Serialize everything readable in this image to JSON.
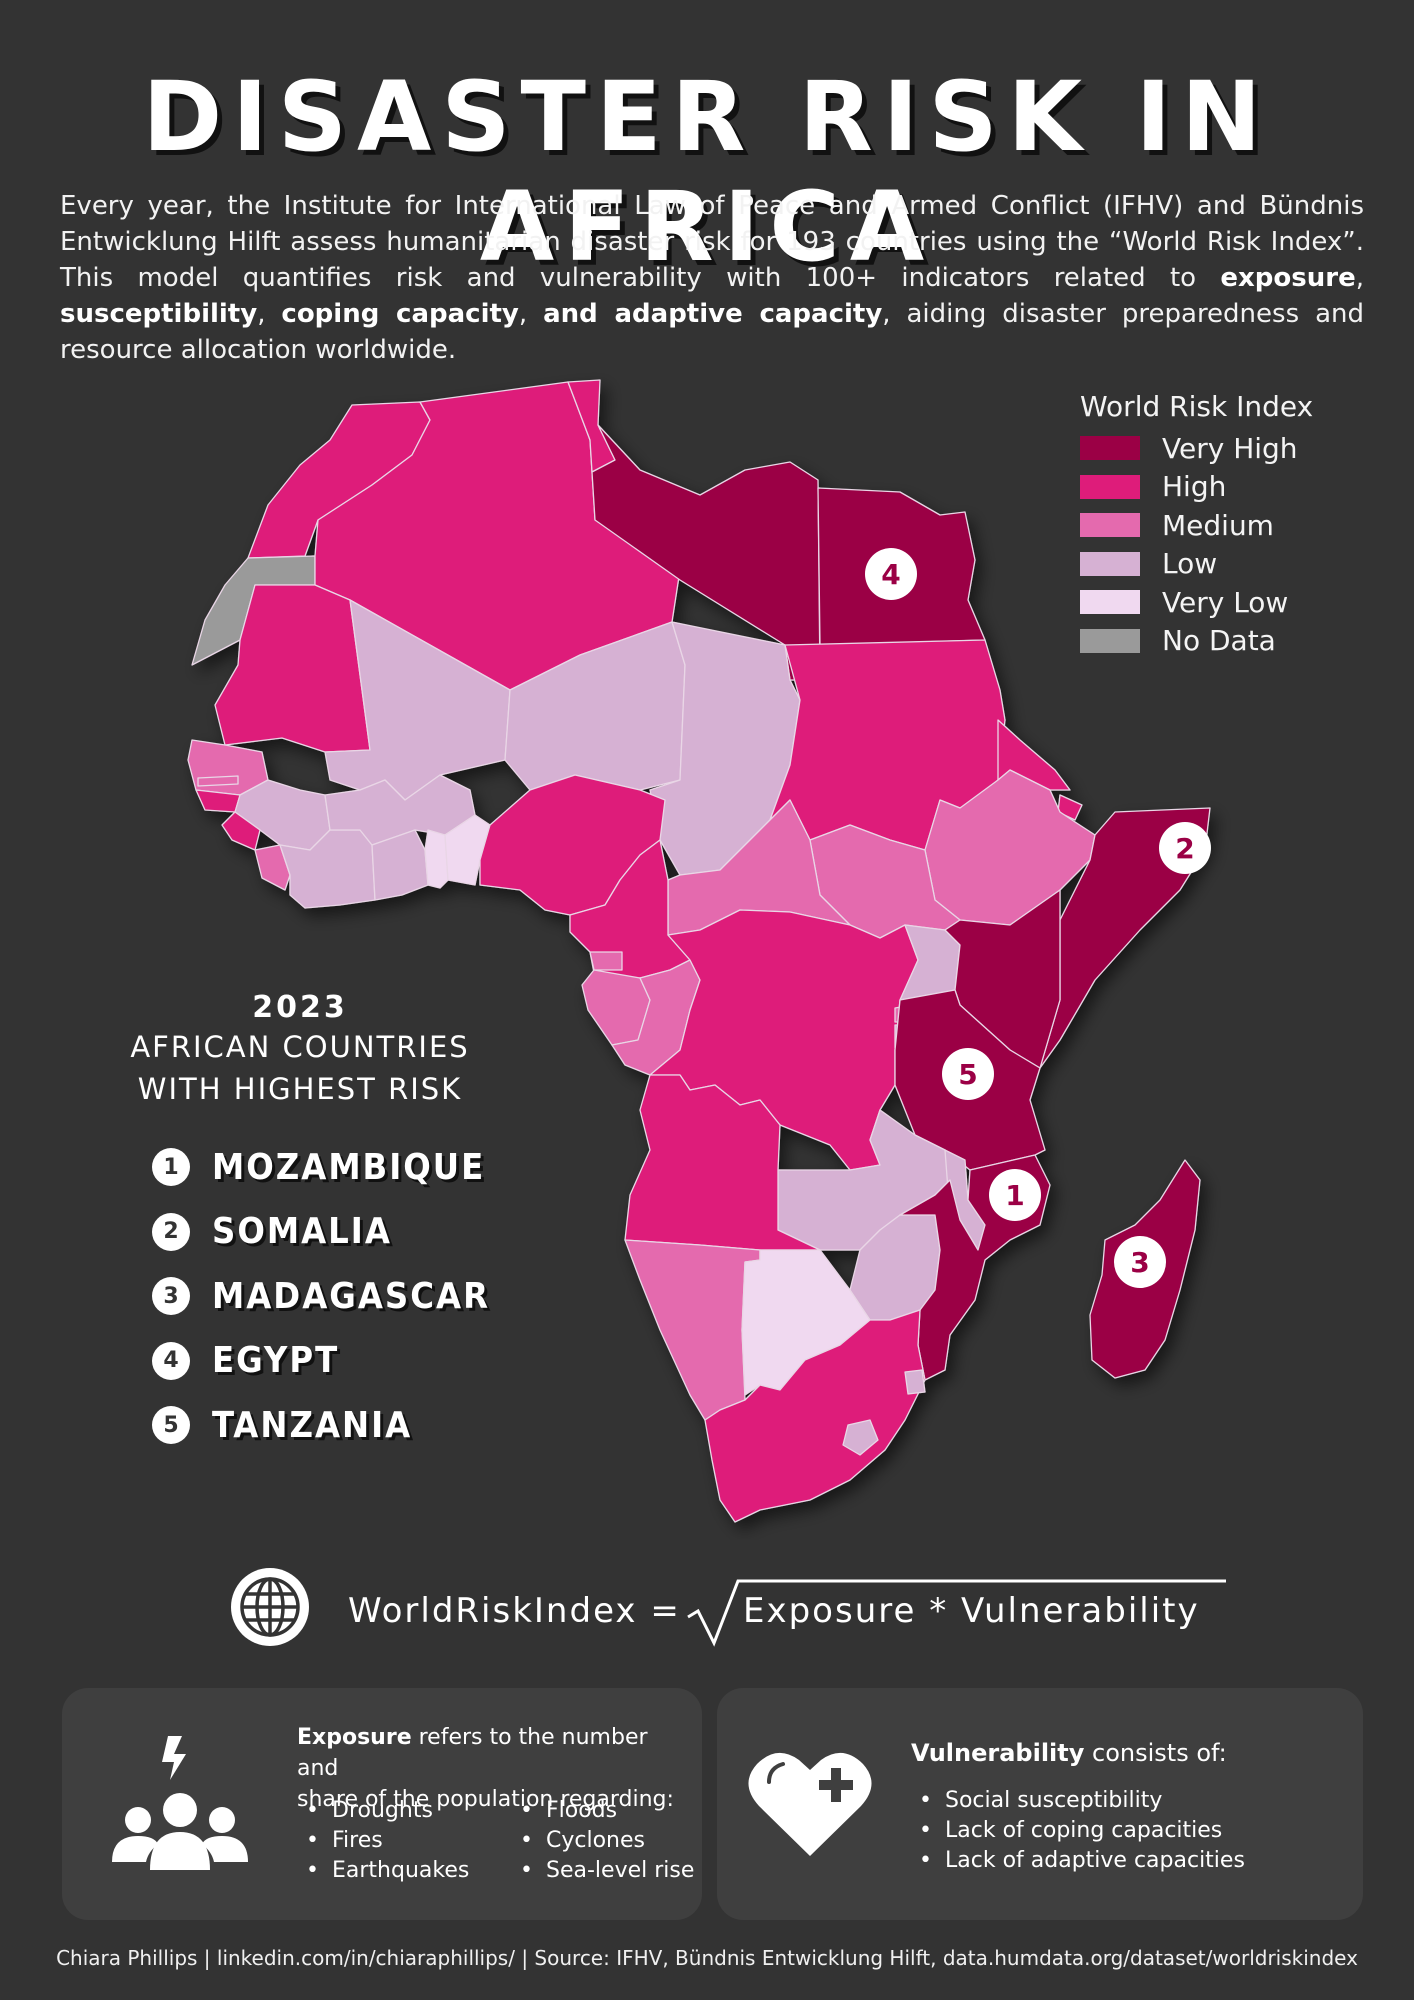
{
  "title": "DISASTER RISK IN AFRICA",
  "intro": {
    "part1": "Every year, the Institute for International Law of Peace and Armed Conflict (IFHV) and Bündnis Entwicklung Hilft assess humanitarian disaster risk for 193 countries using the “World Risk Index”. This model quantifies risk and vulnerability with 100+ indicators related to ",
    "b1": "exposure",
    "sep1": ", ",
    "b2": "susceptibility",
    "sep2": ", ",
    "b3": "coping capacity",
    "sep3": ", ",
    "b4": "and adaptive capacity",
    "part2": ", aiding disaster preparedness and resource allocation worldwide."
  },
  "legend": {
    "title": "World Risk Index",
    "items": [
      {
        "label": "Very High",
        "color": "#9b0045"
      },
      {
        "label": "High",
        "color": "#de1c7a"
      },
      {
        "label": "Medium",
        "color": "#e46aae"
      },
      {
        "label": "Low",
        "color": "#d6b1d3"
      },
      {
        "label": "Very Low",
        "color": "#f0d9f0"
      },
      {
        "label": "No Data",
        "color": "#9a9a9a"
      }
    ]
  },
  "top_countries": {
    "year": "2023",
    "subtitle_line1": "AFRICAN COUNTRIES",
    "subtitle_line2": "WITH HIGHEST RISK",
    "items": [
      {
        "rank": "1",
        "name": "MOZAMBIQUE"
      },
      {
        "rank": "2",
        "name": "SOMALIA"
      },
      {
        "rank": "3",
        "name": "MADAGASCAR"
      },
      {
        "rank": "4",
        "name": "EGYPT"
      },
      {
        "rank": "5",
        "name": "TANZANIA"
      }
    ]
  },
  "map_markers": [
    {
      "rank": "1",
      "country": "Mozambique"
    },
    {
      "rank": "2",
      "country": "Somalia"
    },
    {
      "rank": "3",
      "country": "Madagascar"
    },
    {
      "rank": "4",
      "country": "Egypt"
    },
    {
      "rank": "5",
      "country": "Tanzania"
    }
  ],
  "formula": {
    "left": "WorldRiskIndex =",
    "right": "Exposure * Vulnerability",
    "icon": "globe-icon"
  },
  "exposure_card": {
    "icon": "people-lightning-icon",
    "bold": "Exposure",
    "line1": " refers to the number and",
    "line2": "share of the population regarding:",
    "col1": [
      "Droughts",
      "Fires",
      "Earthquakes"
    ],
    "col2": [
      "Floods",
      "Cyclones",
      "Sea-level rise"
    ]
  },
  "vulnerability_card": {
    "icon": "heart-plus-icon",
    "bold": "Vulnerability",
    "rest": " consists of:",
    "items": [
      "Social susceptibility",
      "Lack of coping capacities",
      "Lack of adaptive capacities"
    ]
  },
  "footer": "Chiara Phillips | linkedin.com/in/chiaraphillips/ | Source: IFHV, Bündnis Entwicklung Hilft, data.humdata.org/dataset/worldriskindex"
}
